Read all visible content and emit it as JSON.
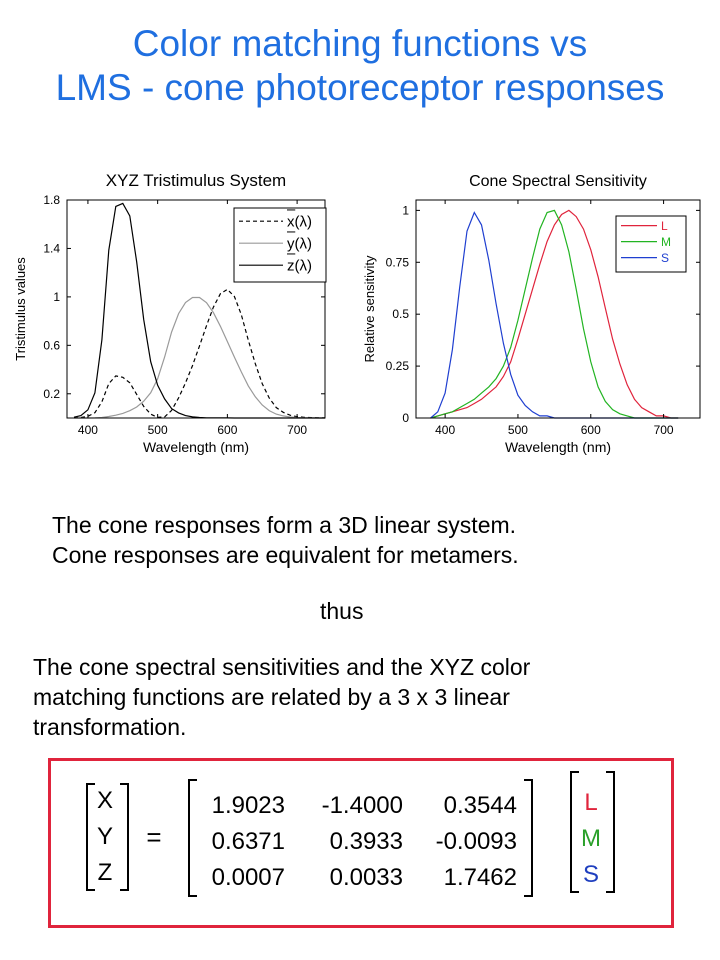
{
  "slide": {
    "title_line1": "Color matching functions vs",
    "title_line2": "LMS - cone photoreceptor responses",
    "title_color": "#1f6fe0",
    "paragraph1_line1": "The cone responses form a 3D linear system.",
    "paragraph1_line2": "Cone responses are equivalent for metamers.",
    "thus": "thus",
    "paragraph2_line1": "The cone spectral sensitivities and the XYZ color",
    "paragraph2_line2": "matching functions are related by a 3 x 3 linear",
    "paragraph2_line3": "transformation."
  },
  "equation": {
    "lhs": [
      "X",
      "Y",
      "Z"
    ],
    "equals": "=",
    "matrix": [
      [
        "1.9023",
        "-1.4000",
        "0.3544"
      ],
      [
        "0.6371",
        "0.3933",
        "-0.0093"
      ],
      [
        "0.0007",
        "0.0033",
        "1.7462"
      ]
    ],
    "rhs": [
      "L",
      "M",
      "S"
    ],
    "rhs_colors": [
      "#e0243c",
      "#2aa02a",
      "#1f3fbf"
    ],
    "box_color": "#e0243c"
  },
  "chart_data": [
    {
      "type": "line",
      "title": "XYZ Tristimulus System",
      "xlabel": "Wavelength (nm)",
      "ylabel": "Tristimulus values",
      "xlim": [
        370,
        740
      ],
      "ylim": [
        0,
        1.8
      ],
      "xticks": [
        400,
        500,
        600,
        700
      ],
      "yticks": [
        0.2,
        0.6,
        1,
        1.4,
        1.8
      ],
      "legend_position": "top-right",
      "x": [
        380,
        390,
        400,
        410,
        420,
        430,
        440,
        450,
        460,
        470,
        480,
        490,
        500,
        510,
        520,
        530,
        540,
        550,
        560,
        570,
        580,
        590,
        600,
        610,
        620,
        630,
        640,
        650,
        660,
        670,
        680,
        690,
        700,
        710,
        720,
        730,
        740
      ],
      "series": [
        {
          "name": "x(λ)",
          "color": "#000000",
          "dash": "4,3",
          "values": [
            0.001,
            0.004,
            0.014,
            0.044,
            0.134,
            0.284,
            0.348,
            0.336,
            0.291,
            0.195,
            0.096,
            0.032,
            0.005,
            0.009,
            0.063,
            0.166,
            0.29,
            0.433,
            0.595,
            0.762,
            0.916,
            1.026,
            1.062,
            1.003,
            0.854,
            0.642,
            0.448,
            0.284,
            0.165,
            0.087,
            0.047,
            0.023,
            0.011,
            0.006,
            0.003,
            0.001,
            0.001
          ]
        },
        {
          "name": "y(λ)",
          "color": "#9a9a9a",
          "dash": "",
          "values": [
            0.0,
            0.0,
            0.0,
            0.001,
            0.004,
            0.012,
            0.023,
            0.038,
            0.06,
            0.091,
            0.139,
            0.208,
            0.323,
            0.503,
            0.71,
            0.862,
            0.954,
            0.995,
            0.995,
            0.952,
            0.87,
            0.757,
            0.631,
            0.503,
            0.381,
            0.265,
            0.175,
            0.107,
            0.061,
            0.032,
            0.017,
            0.008,
            0.004,
            0.002,
            0.001,
            0.0,
            0.0
          ]
        },
        {
          "name": "z(λ)",
          "color": "#000000",
          "dash": "",
          "values": [
            0.007,
            0.02,
            0.068,
            0.207,
            0.646,
            1.386,
            1.747,
            1.772,
            1.669,
            1.288,
            0.813,
            0.465,
            0.272,
            0.158,
            0.078,
            0.042,
            0.02,
            0.009,
            0.004,
            0.002,
            0.002,
            0.001,
            0.001,
            0.0,
            0.0,
            0.0,
            0.0,
            0.0,
            0.0,
            0.0,
            0.0,
            0.0,
            0.0,
            0.0,
            0.0,
            0.0,
            0.0
          ]
        }
      ]
    },
    {
      "type": "line",
      "title": "Cone Spectral Sensitivity",
      "xlabel": "Wavelength (nm)",
      "ylabel": "Relative sensitivity",
      "xlim": [
        360,
        750
      ],
      "ylim": [
        0,
        1.05
      ],
      "xticks": [
        400,
        500,
        600,
        700
      ],
      "yticks": [
        0,
        0.25,
        0.5,
        0.75,
        1
      ],
      "legend_position": "top-right",
      "x": [
        380,
        390,
        400,
        410,
        420,
        430,
        440,
        450,
        460,
        470,
        480,
        490,
        500,
        510,
        520,
        530,
        540,
        550,
        560,
        570,
        580,
        590,
        600,
        610,
        620,
        630,
        640,
        650,
        660,
        670,
        680,
        690,
        700,
        710,
        720
      ],
      "series": [
        {
          "name": "L",
          "color": "#e0243c",
          "values": [
            0.0,
            0.01,
            0.02,
            0.03,
            0.04,
            0.05,
            0.07,
            0.09,
            0.12,
            0.15,
            0.2,
            0.27,
            0.38,
            0.5,
            0.62,
            0.74,
            0.85,
            0.93,
            0.98,
            1.0,
            0.97,
            0.91,
            0.81,
            0.68,
            0.53,
            0.38,
            0.26,
            0.16,
            0.09,
            0.05,
            0.03,
            0.01,
            0.01,
            0.0,
            0.0
          ]
        },
        {
          "name": "M",
          "color": "#22b422",
          "values": [
            0.0,
            0.01,
            0.02,
            0.03,
            0.05,
            0.07,
            0.09,
            0.12,
            0.15,
            0.19,
            0.25,
            0.34,
            0.47,
            0.62,
            0.77,
            0.91,
            0.99,
            1.0,
            0.93,
            0.8,
            0.62,
            0.43,
            0.27,
            0.15,
            0.08,
            0.04,
            0.02,
            0.01,
            0.0,
            0.0,
            0.0,
            0.0,
            0.0,
            0.0,
            0.0
          ]
        },
        {
          "name": "S",
          "color": "#1f3fd0",
          "values": [
            0.0,
            0.03,
            0.12,
            0.33,
            0.63,
            0.9,
            0.99,
            0.93,
            0.76,
            0.55,
            0.36,
            0.21,
            0.11,
            0.06,
            0.03,
            0.01,
            0.01,
            0.0,
            0.0,
            0.0,
            0.0,
            0.0,
            0.0,
            0.0,
            0.0,
            0.0,
            0.0,
            0.0,
            0.0,
            0.0,
            0.0,
            0.0,
            0.0,
            0.0,
            0.0
          ]
        }
      ]
    }
  ]
}
